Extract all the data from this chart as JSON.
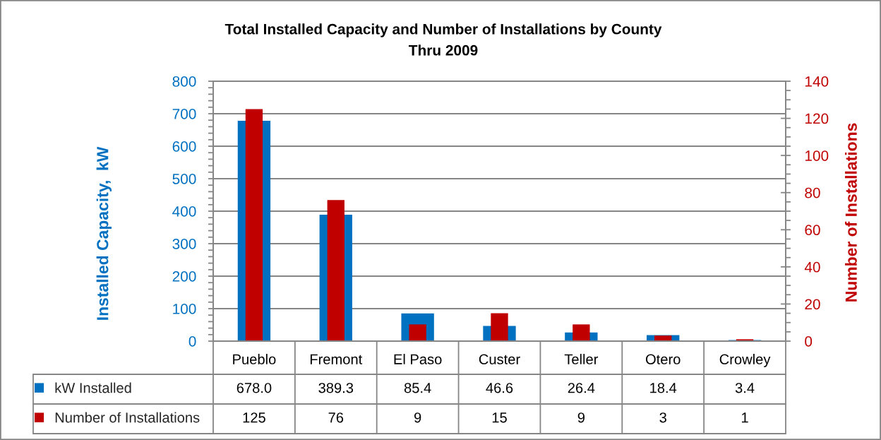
{
  "chart_data": {
    "type": "bar",
    "title": "Total Installed Capacity and Number of Installations by County",
    "subtitle": "Thru 2009",
    "ylabel": "Installed Capacity,  kW",
    "y2label": "Number of Installations",
    "categories": [
      "Pueblo",
      "Fremont",
      "El Paso",
      "Custer",
      "Teller",
      "Otero",
      "Crowley"
    ],
    "series": [
      {
        "name": "kW Installed",
        "color": "#0070c0",
        "values": [
          678.0,
          389.3,
          85.4,
          46.6,
          26.4,
          18.4,
          3.4
        ],
        "value_labels": [
          "678.0",
          "389.3",
          "85.4",
          "46.6",
          "26.4",
          "18.4",
          "3.4"
        ]
      },
      {
        "name": "Number of Installations",
        "color": "#c00000",
        "axis": "y2",
        "values": [
          125,
          76,
          9,
          15,
          9,
          3,
          1
        ],
        "value_labels": [
          "125",
          "76",
          "9",
          "15",
          "9",
          "3",
          "1"
        ]
      }
    ],
    "ylim": [
      0,
      800
    ],
    "yticks": [
      0,
      100,
      200,
      300,
      400,
      500,
      600,
      700,
      800
    ],
    "y2lim": [
      0,
      140
    ],
    "y2ticks": [
      0,
      20,
      40,
      60,
      80,
      100,
      120,
      140
    ],
    "grid": "y",
    "legend": "bottom"
  }
}
